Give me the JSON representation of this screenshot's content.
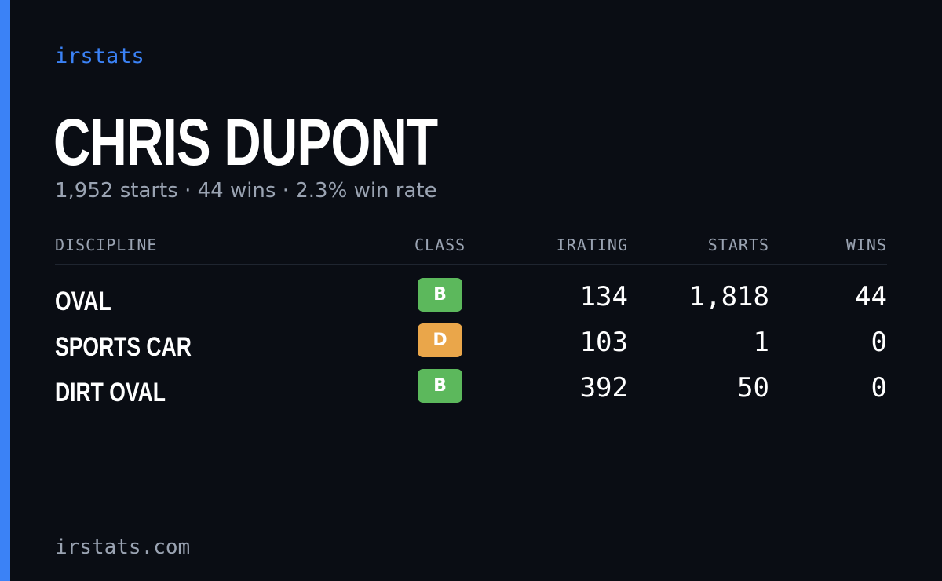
{
  "brand": "irstats",
  "player": {
    "name": "CHRIS DUPONT",
    "summary": "1,952 starts · 44 wins · 2.3% win rate"
  },
  "table": {
    "headers": {
      "discipline": "DISCIPLINE",
      "class": "CLASS",
      "irating": "IRATING",
      "starts": "STARTS",
      "wins": "WINS"
    },
    "rows": [
      {
        "discipline": "OVAL",
        "class": "B",
        "irating": "134",
        "starts": "1,818",
        "wins": "44"
      },
      {
        "discipline": "SPORTS CAR",
        "class": "D",
        "irating": "103",
        "starts": "1",
        "wins": "0"
      },
      {
        "discipline": "DIRT OVAL",
        "class": "B",
        "irating": "392",
        "starts": "50",
        "wins": "0"
      }
    ]
  },
  "footer": "irstats.com",
  "colors": {
    "accent": "#3b82f6",
    "background": "#0a0d14",
    "muted_text": "#9aa3b2",
    "class_b": "#5cb85c",
    "class_d": "#eaa64a"
  }
}
